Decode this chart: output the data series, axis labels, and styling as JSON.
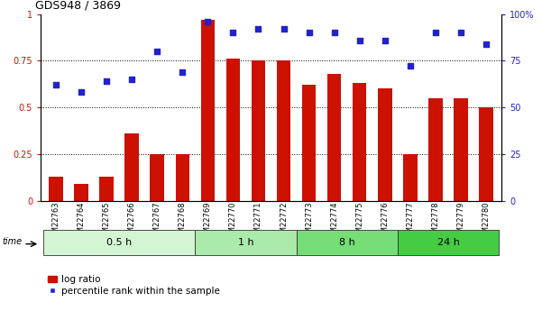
{
  "title": "GDS948 / 3869",
  "categories": [
    "GSM22763",
    "GSM22764",
    "GSM22765",
    "GSM22766",
    "GSM22767",
    "GSM22768",
    "GSM22769",
    "GSM22770",
    "GSM22771",
    "GSM22772",
    "GSM22773",
    "GSM22774",
    "GSM22775",
    "GSM22776",
    "GSM22777",
    "GSM22778",
    "GSM22779",
    "GSM22780"
  ],
  "log_ratio": [
    0.13,
    0.09,
    0.13,
    0.36,
    0.25,
    0.25,
    0.97,
    0.76,
    0.75,
    0.75,
    0.62,
    0.68,
    0.63,
    0.6,
    0.25,
    0.55,
    0.55,
    0.5
  ],
  "percentile": [
    62,
    58,
    64,
    65,
    80,
    69,
    96,
    90,
    92,
    92,
    90,
    90,
    86,
    86,
    72,
    90,
    90,
    84
  ],
  "groups": [
    {
      "label": "0.5 h",
      "start": 0,
      "end": 6,
      "color": "#d4f5d4"
    },
    {
      "label": "1 h",
      "start": 6,
      "end": 10,
      "color": "#aaeaaa"
    },
    {
      "label": "8 h",
      "start": 10,
      "end": 14,
      "color": "#77dd77"
    },
    {
      "label": "24 h",
      "start": 14,
      "end": 18,
      "color": "#44cc44"
    }
  ],
  "bar_color": "#cc1100",
  "dot_color": "#2222cc",
  "yticks_left": [
    0,
    0.25,
    0.5,
    0.75,
    1
  ],
  "ytick_left_labels": [
    "0",
    "0.25",
    "0.5",
    "0.75",
    "1"
  ],
  "yticks_right": [
    0,
    25,
    50,
    75,
    100
  ],
  "ytick_right_labels": [
    "0",
    "25",
    "50",
    "75",
    "100%"
  ],
  "background_color": "#ffffff",
  "plot_bg": "#ffffff",
  "tick_area_bg": "#cccccc",
  "title_fontsize": 9,
  "axis_fontsize": 7,
  "label_fontsize": 6,
  "group_fontsize": 8
}
